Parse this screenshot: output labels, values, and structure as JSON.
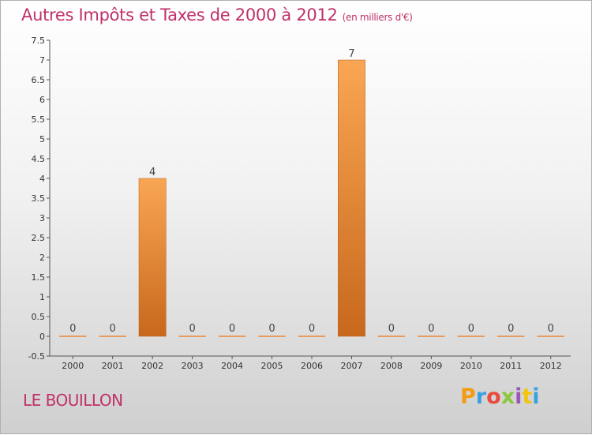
{
  "title": "Autres Impôts et Taxes de 2000 à 2012",
  "unit": "(en milliers d'€)",
  "commune": "LE BOUILLON",
  "logo": {
    "text": "Proxiti",
    "colors": [
      "#f39c12",
      "#3aa0e0",
      "#e74c3c",
      "#8dc63f",
      "#9b59b6",
      "#f1c40f",
      "#3aa0e0"
    ]
  },
  "colors": {
    "title": "#c0306a",
    "bar_top": "#f9a654",
    "bar_bottom": "#c8681c",
    "zero_line": "#e8863a"
  },
  "chart_data": {
    "type": "bar",
    "categories": [
      "2000",
      "2001",
      "2002",
      "2003",
      "2004",
      "2005",
      "2006",
      "2007",
      "2008",
      "2009",
      "2010",
      "2011",
      "2012"
    ],
    "values": [
      0,
      0,
      4,
      0,
      0,
      0,
      0,
      7,
      0,
      0,
      0,
      0,
      0
    ],
    "data_labels": [
      "0",
      "0",
      "4",
      "0",
      "0",
      "0",
      "0",
      "7",
      "0",
      "0",
      "0",
      "0",
      "0"
    ],
    "ylim": [
      -0.5,
      7.5
    ],
    "yticks": [
      "-0.5",
      "0",
      "0.5",
      "1",
      "1.5",
      "2",
      "2.5",
      "3",
      "3.5",
      "4",
      "4.5",
      "5",
      "5.5",
      "6",
      "6.5",
      "7",
      "7.5"
    ],
    "xlabel": "",
    "ylabel": "",
    "grid": false
  }
}
